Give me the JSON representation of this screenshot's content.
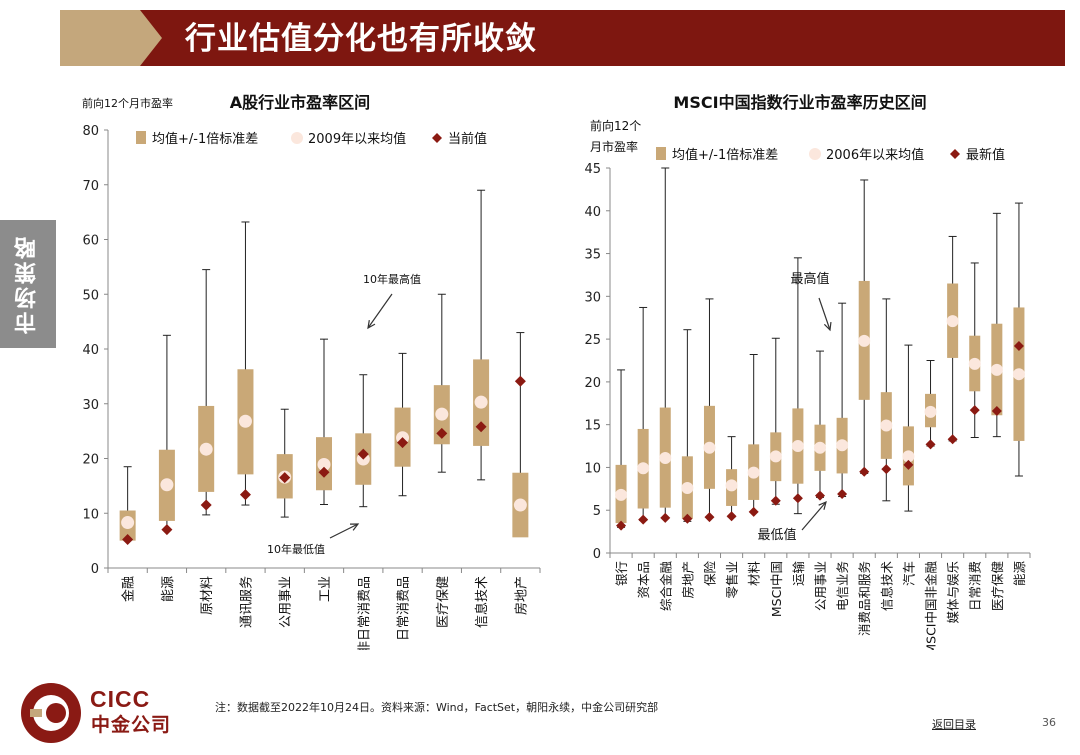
{
  "header": {
    "title": "行业估值分化也有所收敛"
  },
  "side_tab": {
    "label": "市场策略"
  },
  "colors": {
    "bar": "#c9a877",
    "mean": "#fbe7dd",
    "current": "#8b1a12",
    "header_red": "#7e1710",
    "header_tan": "#c4a77c"
  },
  "footer": {
    "note": "注：数据截至2022年10月24日。资料来源：Wind，FactSet，朝阳永续，中金公司研究部",
    "back_link": "返回目录",
    "page": "36"
  },
  "logo": {
    "en": "CICC",
    "cn": "中金公司"
  },
  "chart_data": [
    {
      "type": "box",
      "title": "A股行业市盈率区间",
      "ylabel": "前向12个月市盈率",
      "ylim": [
        0,
        80
      ],
      "yticks": [
        0,
        10,
        20,
        30,
        40,
        50,
        60,
        70,
        80
      ],
      "legend": [
        "均值+/-1倍标准差",
        "2009年以来均值",
        "当前值"
      ],
      "annotations": [
        "10年最高值",
        "10年最低值"
      ],
      "categories": [
        "金融",
        "能源",
        "原材料",
        "通讯服务",
        "公用事业",
        "工业",
        "非日常消费品",
        "日常消费品",
        "医疗保健",
        "信息技术",
        "房地产"
      ],
      "min": [
        5,
        7,
        9.7,
        11.5,
        9.3,
        11.6,
        11.2,
        13.2,
        17.5,
        16.1,
        6.2
      ],
      "max": [
        18.5,
        42.5,
        54.5,
        63.2,
        29,
        41.8,
        35.3,
        39.2,
        50,
        69,
        43
      ],
      "sd_low": [
        5,
        8.6,
        13.9,
        17.1,
        12.7,
        14.2,
        15.2,
        18.5,
        22.6,
        22.3,
        5.6
      ],
      "sd_high": [
        10.5,
        21.6,
        29.6,
        36.3,
        20.8,
        23.9,
        24.6,
        29.3,
        33.4,
        38.1,
        17.4
      ],
      "mean": [
        8.3,
        15.2,
        21.7,
        26.8,
        16.6,
        18.9,
        19.9,
        23.8,
        28.1,
        30.3,
        11.5
      ],
      "current": [
        5.2,
        7,
        11.5,
        13.4,
        16.5,
        17.5,
        20.8,
        22.9,
        24.6,
        25.8,
        34.1
      ]
    },
    {
      "type": "box",
      "title": "MSCI中国指数行业市盈率历史区间",
      "ylabel": "前向12个月市盈率",
      "ylim": [
        0,
        45
      ],
      "yticks": [
        0,
        5,
        10,
        15,
        20,
        25,
        30,
        35,
        40,
        45
      ],
      "legend": [
        "均值+/-1倍标准差",
        "2006年以来均值",
        "最新值"
      ],
      "annotations": [
        "最高值",
        "最低值"
      ],
      "categories": [
        "银行",
        "资本品",
        "综合金融",
        "房地产",
        "保险",
        "零售业",
        "材料",
        "MSCI中国",
        "运输",
        "公用事业",
        "电信业务",
        "消费品和服务",
        "信息技术",
        "汽车",
        "MSCI中国非金融",
        "媒体与娱乐",
        "日常消费",
        "医疗保健",
        "能源"
      ],
      "min": [
        3,
        3.8,
        4.1,
        3.7,
        4.2,
        4.2,
        4.8,
        5.7,
        4.6,
        6.5,
        6.6,
        9.3,
        6.1,
        4.9,
        12.5,
        13.1,
        13.5,
        13.6,
        9
      ],
      "max": [
        21.4,
        28.7,
        45,
        26.1,
        29.7,
        13.6,
        23.2,
        25.1,
        34.5,
        23.6,
        29.2,
        43.6,
        29.7,
        24.3,
        22.5,
        37,
        33.9,
        39.7,
        40.9
      ],
      "sd_low": [
        3.5,
        5.2,
        5.3,
        4,
        7.5,
        5.5,
        6.2,
        8.4,
        8.1,
        9.6,
        9.3,
        17.9,
        11,
        7.9,
        14.7,
        22.8,
        18.9,
        16.1,
        13.1
      ],
      "sd_high": [
        10.3,
        14.5,
        17,
        11.3,
        17.2,
        9.8,
        12.7,
        14.1,
        16.9,
        15,
        15.8,
        31.8,
        18.8,
        14.8,
        18.6,
        31.5,
        25.4,
        26.8,
        28.7
      ],
      "mean": [
        6.8,
        9.9,
        11.1,
        7.6,
        12.3,
        7.9,
        9.4,
        11.3,
        12.5,
        12.3,
        12.6,
        24.8,
        14.9,
        11.3,
        16.5,
        27.1,
        22.1,
        21.4,
        20.9
      ],
      "current": [
        3.2,
        3.9,
        4.1,
        4,
        4.2,
        4.3,
        4.8,
        6.1,
        6.4,
        6.7,
        6.9,
        9.5,
        9.8,
        10.3,
        12.7,
        13.3,
        16.7,
        16.6,
        24.2
      ]
    }
  ]
}
